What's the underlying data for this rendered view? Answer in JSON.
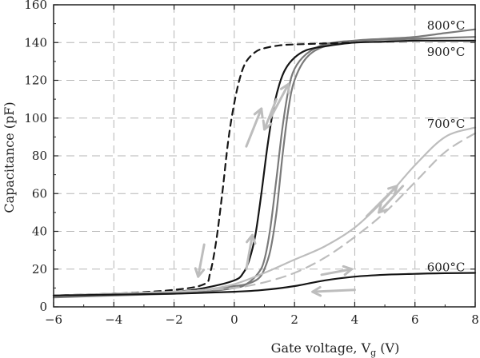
{
  "chart_data": {
    "type": "line",
    "title": "",
    "xlabel": "Gate voltage, V",
    "xlabel_sub": "g",
    "xlabel_unit": " (V)",
    "ylabel": "Capacitance (pF)",
    "xlim": [
      -6,
      8
    ],
    "ylim": [
      0,
      160
    ],
    "xticks": [
      "−6",
      "−4",
      "−2",
      "0",
      "2",
      "4",
      "6",
      "8"
    ],
    "yticks": [
      "0",
      "20",
      "40",
      "60",
      "80",
      "100",
      "120",
      "140",
      "160"
    ],
    "grid": true,
    "annotations": [
      {
        "text": "800°C",
        "x": 6.4,
        "y": 149
      },
      {
        "text": "900°C",
        "x": 6.4,
        "y": 135
      },
      {
        "text": "700°C",
        "x": 6.4,
        "y": 97
      },
      {
        "text": "600°C",
        "x": 6.4,
        "y": 21
      }
    ],
    "series": [
      {
        "name": "800°C",
        "color": "#7a7a7a",
        "dash": "",
        "x": [
          -6,
          -4,
          -2,
          -1,
          -0.5,
          0,
          0.4,
          0.8,
          1,
          1.2,
          1.4,
          1.6,
          1.8,
          2,
          2.4,
          3,
          4,
          5,
          6,
          7,
          8
        ],
        "y": [
          6,
          7,
          8,
          9,
          10,
          11,
          12,
          15,
          20,
          30,
          50,
          80,
          105,
          120,
          132,
          138,
          141,
          142,
          143,
          145,
          147
        ]
      },
      {
        "name": "",
        "color": "#7a7a7a",
        "dash": "",
        "x": [
          -6,
          -4,
          -2,
          -1,
          0,
          0.4,
          0.8,
          1,
          1.2,
          1.4,
          1.6,
          1.8,
          2,
          2.4,
          3,
          4,
          6,
          8
        ],
        "y": [
          5,
          6,
          7,
          8,
          10,
          12,
          18,
          25,
          42,
          68,
          95,
          115,
          126,
          134,
          139,
          141,
          142,
          143
        ]
      },
      {
        "name": "900°C",
        "color": "#151515",
        "dash": "",
        "x": [
          -6,
          -4,
          -2,
          -1,
          0,
          0.3,
          0.5,
          0.7,
          0.9,
          1.1,
          1.3,
          1.5,
          1.7,
          2,
          2.4,
          3,
          4,
          5,
          6,
          7,
          8
        ],
        "y": [
          6,
          7,
          8,
          10,
          14,
          18,
          25,
          38,
          60,
          85,
          105,
          118,
          126,
          132,
          136,
          138,
          140,
          140.5,
          141,
          141,
          141
        ]
      },
      {
        "name": "",
        "color": "#151515",
        "dash": "8,6",
        "x": [
          -6,
          -4,
          -2,
          -1,
          -0.8,
          -0.6,
          -0.4,
          -0.2,
          0,
          0.2,
          0.4,
          0.7,
          1,
          1.5,
          2,
          3,
          4
        ],
        "y": [
          6,
          7,
          9,
          12,
          18,
          35,
          60,
          88,
          108,
          122,
          130,
          135,
          137,
          138.5,
          139,
          139.5,
          140
        ]
      },
      {
        "name": "700°C",
        "color": "#bdbdbd",
        "dash": "",
        "x": [
          -6,
          -4,
          -2,
          -1,
          0,
          1,
          2,
          3,
          4,
          5,
          6,
          7,
          8
        ],
        "y": [
          6,
          7,
          8,
          9,
          12,
          18,
          25,
          32,
          42,
          57,
          75,
          90,
          95
        ]
      },
      {
        "name": "",
        "color": "#bdbdbd",
        "dash": "12,8",
        "x": [
          -6,
          -4,
          -2,
          -1,
          0,
          1,
          2,
          3,
          4,
          5,
          6,
          7,
          8
        ],
        "y": [
          6,
          7,
          8,
          9,
          10,
          13,
          18,
          26,
          37,
          50,
          66,
          82,
          92
        ]
      },
      {
        "name": "600°C",
        "color": "#151515",
        "dash": "",
        "x": [
          -6,
          -4,
          -2,
          0,
          1,
          2,
          3,
          4,
          5,
          6,
          7,
          8
        ],
        "y": [
          6,
          6.5,
          7,
          8,
          9,
          11,
          14,
          16,
          17,
          17.5,
          17.8,
          18
        ]
      }
    ],
    "arrows": [
      {
        "color": "#bdbdbd",
        "x1": 0.4,
        "y1": 85,
        "x2": 0.9,
        "y2": 105
      },
      {
        "color": "#bdbdbd",
        "x1": 1.2,
        "y1": 100,
        "x2": 1.8,
        "y2": 118
      },
      {
        "color": "#bdbdbd",
        "x1": 1.4,
        "y1": 110,
        "x2": 1.0,
        "y2": 94
      },
      {
        "color": "#bdbdbd",
        "x1": -1.0,
        "y1": 33,
        "x2": -1.2,
        "y2": 16
      },
      {
        "color": "#bdbdbd",
        "x1": 0.4,
        "y1": 20,
        "x2": 0.6,
        "y2": 38
      },
      {
        "color": "#bdbdbd",
        "x1": 4.4,
        "y1": 48,
        "x2": 5.4,
        "y2": 64
      },
      {
        "color": "#bdbdbd",
        "x1": 5.6,
        "y1": 64,
        "x2": 4.8,
        "y2": 50
      },
      {
        "color": "#bdbdbd",
        "x1": 2.9,
        "y1": 17,
        "x2": 3.9,
        "y2": 20
      },
      {
        "color": "#bdbdbd",
        "x1": 4.0,
        "y1": 9,
        "x2": 2.6,
        "y2": 8
      }
    ]
  }
}
